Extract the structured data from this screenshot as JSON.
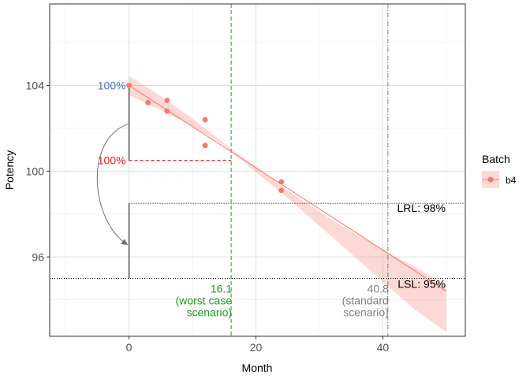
{
  "chart_data": {
    "type": "scatter",
    "xlabel": "Month",
    "ylabel": "Potency",
    "xlim": [
      -12.5,
      53
    ],
    "ylim": [
      92.3,
      107.8
    ],
    "x_ticks": [
      0,
      20,
      40
    ],
    "y_ticks": [
      96,
      100,
      104
    ],
    "grid": true,
    "legend": {
      "title": "Batch",
      "position": "right",
      "entries": [
        "b4"
      ]
    },
    "series": [
      {
        "name": "b4",
        "color": "#F8766D",
        "points": [
          {
            "x": 0,
            "y": 104.0
          },
          {
            "x": 3,
            "y": 103.2
          },
          {
            "x": 6,
            "y": 103.3
          },
          {
            "x": 6,
            "y": 102.8
          },
          {
            "x": 12,
            "y": 102.4
          },
          {
            "x": 12,
            "y": 101.2
          },
          {
            "x": 24,
            "y": 99.5
          },
          {
            "x": 24,
            "y": 99.1
          }
        ],
        "fit": {
          "x": [
            0,
            50
          ],
          "y": [
            104.0,
            94.4
          ]
        },
        "band_upper": [
          {
            "x": 0,
            "y": 104.45
          },
          {
            "x": 5,
            "y": 103.5
          },
          {
            "x": 10,
            "y": 102.45
          },
          {
            "x": 15,
            "y": 101.3
          },
          {
            "x": 20,
            "y": 100.2
          },
          {
            "x": 25,
            "y": 99.1
          },
          {
            "x": 30,
            "y": 98.1
          },
          {
            "x": 35,
            "y": 97.2
          },
          {
            "x": 40,
            "y": 96.35
          },
          {
            "x": 45,
            "y": 95.55
          },
          {
            "x": 50,
            "y": 94.7
          }
        ],
        "band_lower": [
          {
            "x": 0,
            "y": 103.55
          },
          {
            "x": 5,
            "y": 102.85
          },
          {
            "x": 10,
            "y": 102.1
          },
          {
            "x": 15,
            "y": 101.2
          },
          {
            "x": 20,
            "y": 99.95
          },
          {
            "x": 25,
            "y": 98.75
          },
          {
            "x": 30,
            "y": 97.45
          },
          {
            "x": 35,
            "y": 96.15
          },
          {
            "x": 40,
            "y": 94.85
          },
          {
            "x": 45,
            "y": 93.55
          },
          {
            "x": 50,
            "y": 92.5
          }
        ]
      }
    ],
    "reference_lines": {
      "lsl": {
        "y": 95,
        "label": "LSL:  95%"
      },
      "lrl": {
        "y": 98.5,
        "label": "LRL:  98%"
      },
      "worst_case": {
        "x": 16.1,
        "value_label": "16.1",
        "line1": "(worst case",
        "line2": "scenario)",
        "color": "#1E9B1E"
      },
      "standard": {
        "x": 40.8,
        "value_label": "40.8",
        "line1": "(standard",
        "line2": "scenario)",
        "color": "#808080"
      }
    },
    "annotations": {
      "top_label": {
        "text": "100%",
        "y": 104.0,
        "color": "#4A72C4"
      },
      "mid_label": {
        "text": "100%",
        "y": 100.5,
        "color": "#E31A1C"
      }
    }
  }
}
